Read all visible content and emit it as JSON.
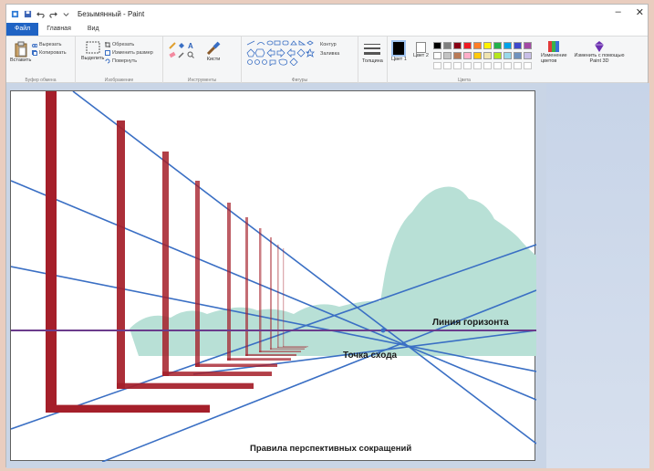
{
  "window": {
    "title": "Безымянный - Paint",
    "controls": {
      "minimize": "–",
      "close": "✕"
    }
  },
  "menu": {
    "tabs": [
      {
        "label": "Файл"
      },
      {
        "label": "Главная"
      },
      {
        "label": "Вид"
      }
    ]
  },
  "ribbon": {
    "clipboard": {
      "paste_label": "Вставить",
      "cut_label": "Вырезать",
      "copy_label": "Копировать",
      "group_label": "Буфер обмена"
    },
    "image": {
      "select_label": "Выделить",
      "crop_label": "Обрезать",
      "resize_label": "Изменить размер",
      "rotate_label": "Повернуть",
      "group_label": "Изображение"
    },
    "tools": {
      "brushes_label": "Кисти",
      "group_label": "Инструменты"
    },
    "shapes": {
      "outline_label": "Контур",
      "fill_label": "Заливка",
      "group_label": "Фигуры"
    },
    "size": {
      "label": "Толщина"
    },
    "colors": {
      "color1_label": "Цвет 1",
      "color2_label": "Цвет 2",
      "edit_label": "Изменение цветов",
      "paint3d_label": "Изменить с помощью Paint 3D",
      "group_label": "Цвета",
      "palette_row1": [
        "#000000",
        "#7f7f7f",
        "#880015",
        "#ed1c24",
        "#ff7f27",
        "#fff200",
        "#22b14c",
        "#00a2e8",
        "#3f48cc",
        "#a349a4"
      ],
      "palette_row2": [
        "#ffffff",
        "#c3c3c3",
        "#b97a57",
        "#ffaec9",
        "#ffc90e",
        "#efe4b0",
        "#b5e61d",
        "#99d9ea",
        "#7092be",
        "#c8bfe7"
      ],
      "selected_color1": "#000000",
      "selected_color2": "#ffffff"
    }
  },
  "canvas": {
    "labels": {
      "horizon": "Линия горизонта",
      "vanishing_point": "Точка схода",
      "caption": "Правила перспективных сокращений"
    },
    "colors": {
      "line": "#3a6fc4",
      "horizon": "#6a3b8c",
      "pole": "#a51f2a",
      "mountain": "#b8e0d6"
    }
  }
}
